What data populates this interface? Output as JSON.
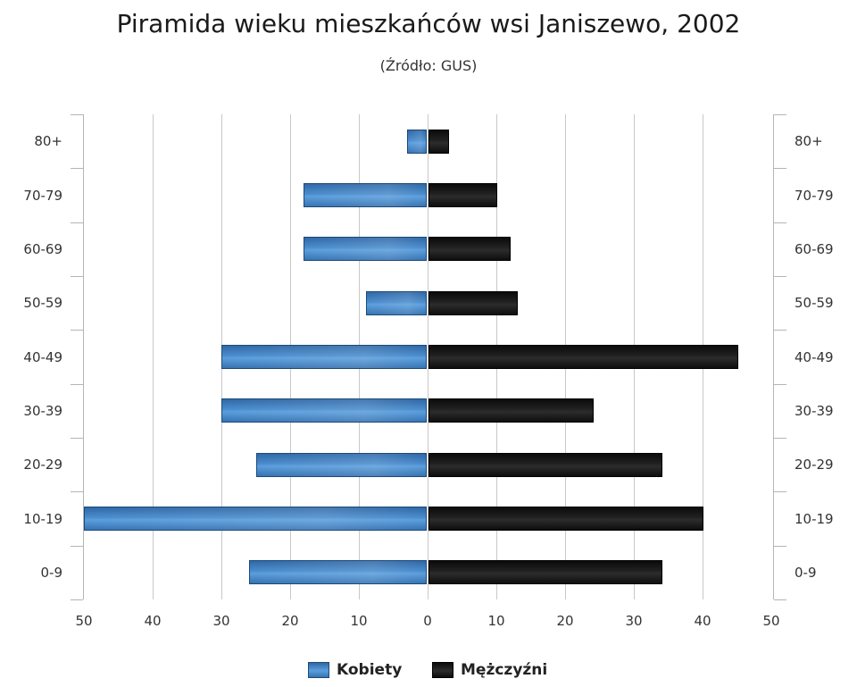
{
  "title": "Piramida wieku mieszkańców wsi Janiszewo, 2002",
  "subtitle": "(Źródło: GUS)",
  "legend": [
    {
      "label": "Kobiety",
      "color": "#3a78b8"
    },
    {
      "label": "Mężczyźni",
      "color": "#111111"
    }
  ],
  "x_ticks_left": [
    "50",
    "40",
    "30",
    "20",
    "10"
  ],
  "x_tick_zero": "0",
  "x_ticks_right": [
    "10",
    "20",
    "30",
    "40",
    "50"
  ],
  "categories": [
    "80+",
    "70-79",
    "60-69",
    "50-59",
    "40-49",
    "30-39",
    "20-29",
    "10-19",
    "0-9"
  ],
  "chart_data": {
    "type": "bar",
    "orientation": "horizontal",
    "subtype": "population-pyramid",
    "title": "Piramida wieku mieszkańców wsi Janiszewo, 2002",
    "subtitle": "(Źródło: GUS)",
    "categories": [
      "80+",
      "70-79",
      "60-69",
      "50-59",
      "40-49",
      "30-39",
      "20-29",
      "10-19",
      "0-9"
    ],
    "series": [
      {
        "name": "Kobiety",
        "side": "left",
        "color": "#3a78b8",
        "values": [
          3,
          18,
          18,
          9,
          30,
          30,
          25,
          50,
          26
        ]
      },
      {
        "name": "Mężczyźni",
        "side": "right",
        "color": "#111111",
        "values": [
          3,
          10,
          12,
          13,
          45,
          24,
          34,
          40,
          34
        ]
      }
    ],
    "xlim": [
      -50,
      50
    ],
    "x_tick_labels": [
      "50",
      "40",
      "30",
      "20",
      "10",
      "0",
      "10",
      "20",
      "30",
      "40",
      "50"
    ],
    "xlabel": "",
    "ylabel": "",
    "grid": {
      "vertical": true,
      "horizontal": false
    },
    "legend_position": "bottom-center"
  }
}
